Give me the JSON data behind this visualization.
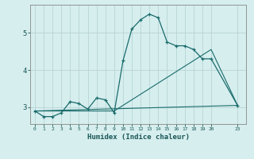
{
  "xlabel": "Humidex (Indice chaleur)",
  "bg_color": "#d6eeee",
  "grid_color": "#b8d4d4",
  "line_color": "#1a6b6b",
  "curve1_x": [
    0,
    1,
    2,
    3,
    4,
    5,
    6,
    7,
    8,
    9,
    10,
    11,
    12,
    13,
    14,
    15,
    16,
    17,
    18,
    19,
    20,
    23
  ],
  "curve1_y": [
    2.9,
    2.75,
    2.75,
    2.85,
    3.15,
    3.1,
    2.95,
    3.25,
    3.2,
    2.85,
    4.25,
    5.1,
    5.35,
    5.5,
    5.4,
    4.75,
    4.65,
    4.65,
    4.55,
    4.3,
    4.3,
    3.05
  ],
  "curve2_x": [
    0,
    9,
    20,
    23
  ],
  "curve2_y": [
    2.9,
    2.9,
    4.55,
    3.05
  ],
  "curve3_x": [
    0,
    23
  ],
  "curve3_y": [
    2.9,
    3.05
  ],
  "xticks": [
    0,
    1,
    2,
    3,
    4,
    5,
    6,
    7,
    8,
    9,
    10,
    11,
    12,
    13,
    14,
    15,
    16,
    17,
    18,
    19,
    20,
    23
  ],
  "yticks": [
    3,
    4,
    5
  ],
  "xlim": [
    -0.5,
    24.0
  ],
  "ylim": [
    2.55,
    5.75
  ]
}
